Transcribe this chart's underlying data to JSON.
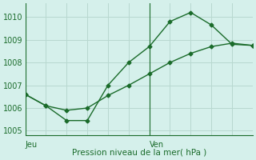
{
  "xlabel": "Pression niveau de la mer( hPa )",
  "background_color": "#d5f0eb",
  "line_color": "#1a6b2a",
  "grid_color": "#b8d8d0",
  "series1_x": [
    0,
    1,
    2,
    3,
    4,
    5,
    6,
    7,
    8,
    9,
    10,
    11
  ],
  "series1_y": [
    1006.6,
    1006.1,
    1005.45,
    1005.45,
    1007.0,
    1008.0,
    1008.7,
    1009.8,
    1010.2,
    1009.65,
    1008.8,
    1008.75
  ],
  "series2_x": [
    0,
    1,
    2,
    3,
    4,
    5,
    6,
    7,
    8,
    9,
    10,
    11
  ],
  "series2_y": [
    1006.6,
    1006.1,
    1005.9,
    1006.0,
    1006.55,
    1007.0,
    1007.5,
    1008.0,
    1008.4,
    1008.7,
    1008.85,
    1008.75
  ],
  "jeu_x": 0,
  "ven_x": 6,
  "ylim": [
    1004.8,
    1010.6
  ],
  "yticks": [
    1005,
    1006,
    1007,
    1008,
    1009,
    1010
  ],
  "xlim": [
    0,
    11
  ],
  "num_points": 12,
  "grid_xticks": [
    0,
    1,
    2,
    3,
    4,
    5,
    6,
    7,
    8,
    9,
    10,
    11
  ]
}
